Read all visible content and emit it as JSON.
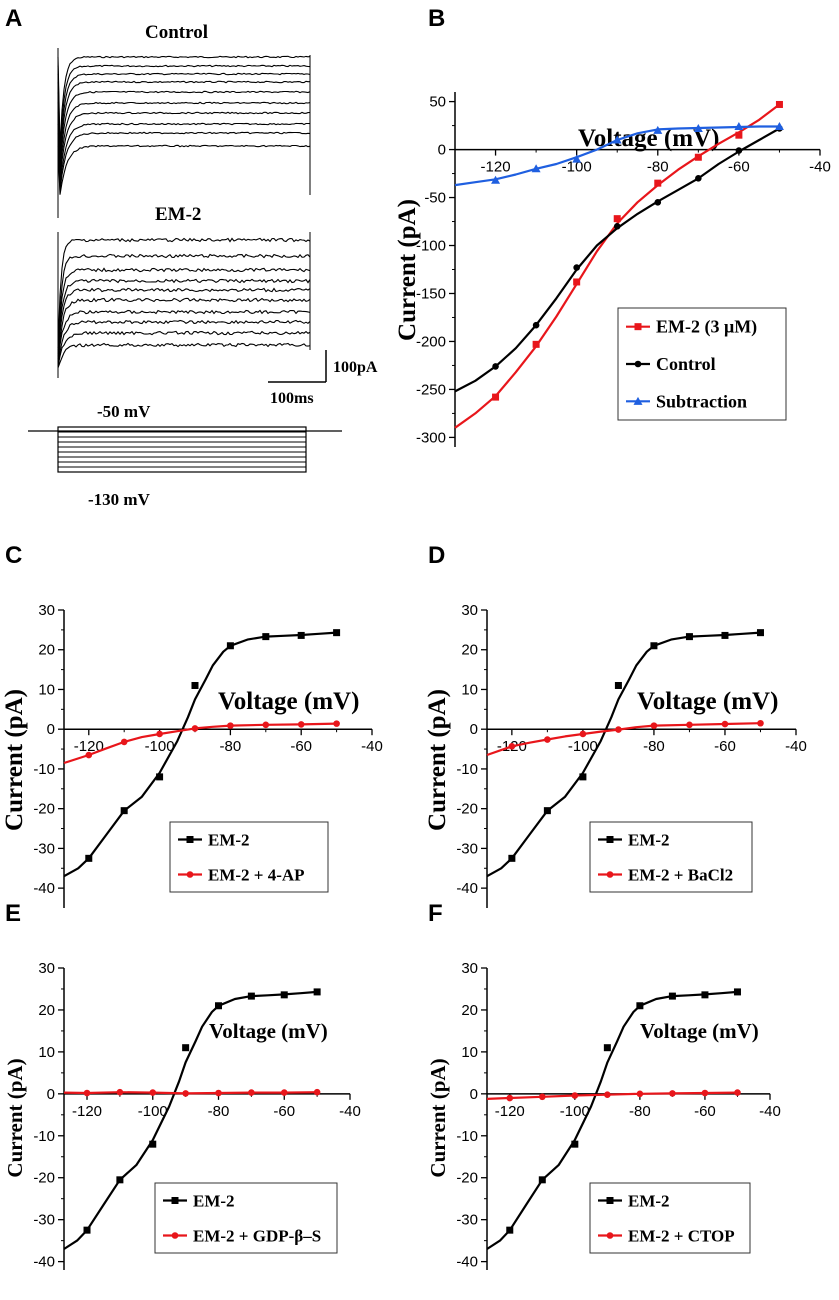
{
  "panel_labels": {
    "A": "A",
    "B": "B",
    "C": "C",
    "D": "D",
    "E": "E",
    "F": "F"
  },
  "panel_a": {
    "control_label": "Control",
    "em2_label": "EM-2",
    "scale_current": "100pA",
    "scale_time": "100ms",
    "protocol_top": "-50 mV",
    "protocol_bottom": "-130 mV"
  },
  "colors": {
    "red": "#e8161b",
    "black": "#000000",
    "blue": "#1f5fe0"
  },
  "chart_data": [
    {
      "id": "B",
      "type": "line",
      "xlabel": "Voltage (mV)",
      "ylabel": "Current (pA)",
      "xlim": [
        -130,
        -40
      ],
      "ylim": [
        -310,
        60
      ],
      "xticks": [
        -120,
        -100,
        -80,
        -60,
        -40
      ],
      "yticks": [
        50,
        0,
        -50,
        -100,
        -150,
        -200,
        -250,
        -300
      ],
      "legend_position": "bottom-right",
      "series": [
        {
          "name": "EM-2 (3 μM)",
          "color": "red",
          "marker": "square",
          "x": [
            -120,
            -110,
            -100,
            -90,
            -80,
            -70,
            -60,
            -50
          ],
          "y": [
            -258,
            -203,
            -138,
            -72,
            -35,
            -8,
            15,
            47
          ],
          "curve_x": [
            -130,
            -125,
            -120,
            -115,
            -110,
            -105,
            -100,
            -95,
            -90,
            -85,
            -80,
            -75,
            -70,
            -65,
            -60,
            -55,
            -50
          ],
          "curve_y": [
            -290,
            -275,
            -257,
            -232,
            -205,
            -174,
            -140,
            -106,
            -77,
            -55,
            -37,
            -21,
            -7,
            6,
            18,
            31,
            47
          ]
        },
        {
          "name": "Control",
          "color": "black",
          "marker": "circle",
          "x": [
            -120,
            -110,
            -100,
            -90,
            -80,
            -70,
            -60,
            -50
          ],
          "y": [
            -226,
            -183,
            -123,
            -80,
            -55,
            -30,
            -1,
            22
          ],
          "curve_x": [
            -130,
            -125,
            -120,
            -115,
            -110,
            -105,
            -100,
            -95,
            -90,
            -85,
            -80,
            -75,
            -70,
            -65,
            -60,
            -55,
            -50
          ],
          "curve_y": [
            -252,
            -241,
            -226,
            -207,
            -183,
            -155,
            -125,
            -100,
            -82,
            -67,
            -54,
            -42,
            -30,
            -15,
            -2,
            10,
            22
          ]
        },
        {
          "name": "Subtraction",
          "color": "blue",
          "marker": "triangle",
          "x": [
            -120,
            -110,
            -100,
            -90,
            -80,
            -70,
            -60,
            -50
          ],
          "y": [
            -32,
            -20,
            -10,
            10,
            20,
            22,
            24,
            24
          ],
          "curve_x": [
            -130,
            -125,
            -120,
            -115,
            -110,
            -105,
            -100,
            -95,
            -90,
            -85,
            -80,
            -75,
            -70,
            -65,
            -60,
            -55,
            -50
          ],
          "curve_y": [
            -37,
            -34,
            -31,
            -26,
            -20,
            -15,
            -8,
            0,
            10,
            17,
            21,
            22,
            22.5,
            23,
            23.5,
            24,
            24
          ]
        }
      ]
    },
    {
      "id": "C",
      "type": "line",
      "xlabel": "Voltage (mV)",
      "ylabel": "Current (pA)",
      "xlim": [
        -127,
        -40
      ],
      "ylim": [
        -45,
        30
      ],
      "xticks": [
        -120,
        -100,
        -80,
        -60,
        -40
      ],
      "yticks": [
        30,
        20,
        10,
        0,
        -10,
        -20,
        -30,
        -40
      ],
      "legend_position": "bottom-right",
      "series": [
        {
          "name": "EM-2",
          "color": "black",
          "marker": "square",
          "x": [
            -120,
            -110,
            -100,
            -90,
            -80,
            -70,
            -60,
            -50
          ],
          "y": [
            -32.5,
            -20.5,
            -12,
            11,
            21,
            23.3,
            23.6,
            24.3
          ],
          "curve_x": [
            -127,
            -123,
            -120,
            -115,
            -110,
            -105,
            -100,
            -95,
            -92,
            -90,
            -87,
            -85,
            -82,
            -80,
            -75,
            -70,
            -65,
            -60,
            -55,
            -50
          ],
          "curve_y": [
            -37,
            -35,
            -32.5,
            -26.5,
            -20.5,
            -17,
            -11,
            -3,
            3,
            7.5,
            12.5,
            16,
            19.5,
            21,
            22.6,
            23.3,
            23.5,
            23.7,
            24,
            24.3
          ]
        },
        {
          "name": "EM-2 + 4-AP",
          "color": "red",
          "marker": "circle",
          "x": [
            -120,
            -110,
            -100,
            -90,
            -80,
            -70,
            -60,
            -50
          ],
          "y": [
            -6.5,
            -3.2,
            -1.2,
            0.2,
            0.9,
            1.1,
            1.2,
            1.4
          ],
          "curve_x": [
            -127,
            -120,
            -115,
            -110,
            -105,
            -100,
            -95,
            -90,
            -85,
            -80,
            -70,
            -60,
            -50
          ],
          "curve_y": [
            -8.5,
            -6.5,
            -4.8,
            -3.2,
            -2,
            -1.2,
            -0.5,
            0.2,
            0.6,
            0.9,
            1.1,
            1.2,
            1.4
          ]
        }
      ]
    },
    {
      "id": "D",
      "type": "line",
      "xlabel": "Voltage (mV)",
      "ylabel": "Current (pA)",
      "xlim": [
        -127,
        -40
      ],
      "ylim": [
        -45,
        30
      ],
      "xticks": [
        -120,
        -100,
        -80,
        -60,
        -40
      ],
      "yticks": [
        30,
        20,
        10,
        0,
        -10,
        -20,
        -30,
        -40
      ],
      "legend_position": "bottom-right",
      "series": [
        {
          "name": "EM-2",
          "color": "black",
          "marker": "square",
          "x": [
            -120,
            -110,
            -100,
            -90,
            -80,
            -70,
            -60,
            -50
          ],
          "y": [
            -32.5,
            -20.5,
            -12,
            11,
            21,
            23.3,
            23.6,
            24.3
          ],
          "curve_x": [
            -127,
            -123,
            -120,
            -115,
            -110,
            -105,
            -100,
            -95,
            -92,
            -90,
            -87,
            -85,
            -82,
            -80,
            -75,
            -70,
            -65,
            -60,
            -55,
            -50
          ],
          "curve_y": [
            -37,
            -35,
            -32.5,
            -26.5,
            -20.5,
            -17,
            -11,
            -3,
            3,
            7.5,
            12.5,
            16,
            19.5,
            21,
            22.6,
            23.3,
            23.5,
            23.7,
            24,
            24.3
          ]
        },
        {
          "name": "EM-2 + BaCl2",
          "color": "red",
          "marker": "circle",
          "x": [
            -120,
            -110,
            -100,
            -90,
            -80,
            -70,
            -60,
            -50
          ],
          "y": [
            -4.3,
            -2.6,
            -1.2,
            -0.1,
            0.9,
            1.1,
            1.3,
            1.5
          ],
          "curve_x": [
            -127,
            -120,
            -115,
            -110,
            -105,
            -100,
            -95,
            -90,
            -85,
            -80,
            -70,
            -60,
            -50
          ],
          "curve_y": [
            -6.5,
            -4.3,
            -3.4,
            -2.6,
            -1.8,
            -1.2,
            -0.6,
            -0.1,
            0.5,
            0.9,
            1.1,
            1.3,
            1.5
          ]
        }
      ]
    },
    {
      "id": "E",
      "type": "line",
      "xlabel": "Voltage (mV)",
      "ylabel": "Current (pA)",
      "xlim": [
        -127,
        -40
      ],
      "ylim": [
        -42,
        30
      ],
      "xticks": [
        -120,
        -100,
        -80,
        -60,
        -40
      ],
      "yticks": [
        30,
        20,
        10,
        0,
        -10,
        -20,
        -30,
        -40
      ],
      "legend_position": "bottom-left",
      "series": [
        {
          "name": "EM-2",
          "color": "black",
          "marker": "square",
          "x": [
            -120,
            -110,
            -100,
            -90,
            -80,
            -70,
            -60,
            -50
          ],
          "y": [
            -32.5,
            -20.5,
            -12,
            11,
            21,
            23.3,
            23.6,
            24.3
          ],
          "curve_x": [
            -127,
            -123,
            -120,
            -115,
            -110,
            -105,
            -100,
            -95,
            -92,
            -90,
            -87,
            -85,
            -82,
            -80,
            -75,
            -70,
            -65,
            -60,
            -55,
            -50
          ],
          "curve_y": [
            -37,
            -35,
            -32.5,
            -26.5,
            -20.5,
            -17,
            -11,
            -3,
            3,
            7.5,
            12.5,
            16,
            19.5,
            21,
            22.6,
            23.3,
            23.5,
            23.7,
            24,
            24.3
          ]
        },
        {
          "name": "EM-2 + GDP-β–S",
          "color": "red",
          "marker": "circle",
          "x": [
            -120,
            -110,
            -100,
            -90,
            -80,
            -70,
            -60,
            -50
          ],
          "y": [
            0.2,
            0.4,
            0.3,
            0.1,
            0.2,
            0.3,
            0.3,
            0.4
          ],
          "curve_x": [
            -127,
            -120,
            -110,
            -100,
            -90,
            -80,
            -70,
            -60,
            -50
          ],
          "curve_y": [
            0.3,
            0.2,
            0.4,
            0.3,
            0.1,
            0.2,
            0.3,
            0.3,
            0.4
          ]
        }
      ]
    },
    {
      "id": "F",
      "type": "line",
      "xlabel": "Voltage (mV)",
      "ylabel": "Current (pA)",
      "xlim": [
        -127,
        -40
      ],
      "ylim": [
        -42,
        30
      ],
      "xticks": [
        -120,
        -100,
        -80,
        -60,
        -40
      ],
      "yticks": [
        30,
        20,
        10,
        0,
        -10,
        -20,
        -30,
        -40
      ],
      "legend_position": "bottom-right",
      "series": [
        {
          "name": "EM-2",
          "color": "black",
          "marker": "square",
          "x": [
            -120,
            -110,
            -100,
            -90,
            -80,
            -70,
            -60,
            -50
          ],
          "y": [
            -32.5,
            -20.5,
            -12,
            11,
            21,
            23.3,
            23.6,
            24.3
          ],
          "curve_x": [
            -127,
            -123,
            -120,
            -115,
            -110,
            -105,
            -100,
            -95,
            -92,
            -90,
            -87,
            -85,
            -82,
            -80,
            -75,
            -70,
            -65,
            -60,
            -55,
            -50
          ],
          "curve_y": [
            -37,
            -35,
            -32.5,
            -26.5,
            -20.5,
            -17,
            -11,
            -3,
            3,
            7.5,
            12.5,
            16,
            19.5,
            21,
            22.6,
            23.3,
            23.5,
            23.7,
            24,
            24.3
          ]
        },
        {
          "name": "EM-2 + CTOP",
          "color": "red",
          "marker": "circle",
          "x": [
            -120,
            -110,
            -100,
            -90,
            -80,
            -70,
            -60,
            -50
          ],
          "y": [
            -1,
            -0.7,
            -0.4,
            -0.2,
            0,
            0.1,
            0.2,
            0.3
          ],
          "curve_x": [
            -127,
            -120,
            -110,
            -100,
            -90,
            -80,
            -70,
            -60,
            -50
          ],
          "curve_y": [
            -1.2,
            -1,
            -0.7,
            -0.4,
            -0.2,
            0,
            0.1,
            0.2,
            0.3
          ]
        }
      ]
    }
  ]
}
